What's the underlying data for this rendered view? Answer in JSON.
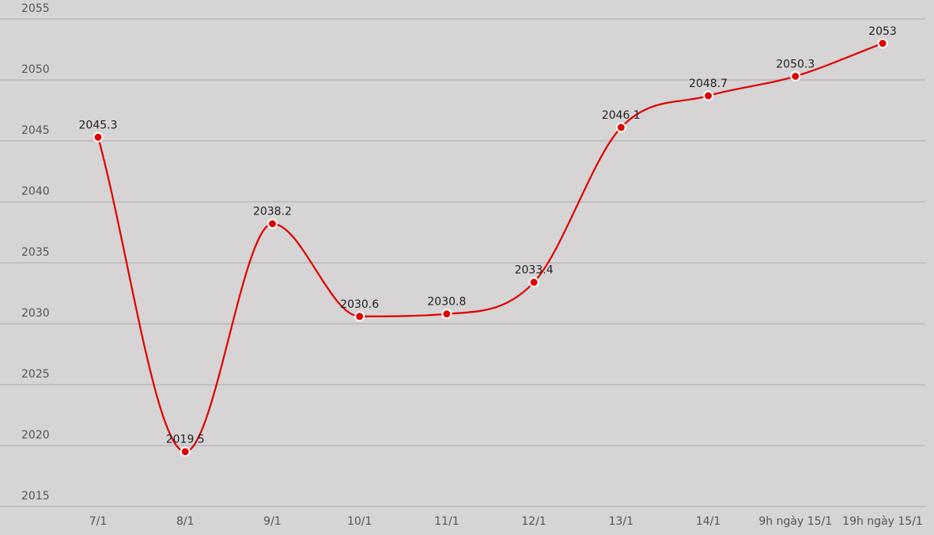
{
  "chart_data": {
    "type": "line",
    "categories": [
      "7/1",
      "8/1",
      "9/1",
      "10/1",
      "11/1",
      "12/1",
      "13/1",
      "14/1",
      "9h ngày 15/1",
      "19h ngày 15/1"
    ],
    "series": [
      {
        "color": "#e00000",
        "values": [
          2045.3,
          2019.5,
          2038.2,
          2030.6,
          2030.8,
          2033.4,
          2046.1,
          2048.7,
          2050.3,
          2053
        ]
      }
    ],
    "ylim": [
      2015,
      2055
    ],
    "yticks": [
      2015,
      2020,
      2025,
      2030,
      2035,
      2040,
      2045,
      2050,
      2055
    ],
    "grid": true
  }
}
